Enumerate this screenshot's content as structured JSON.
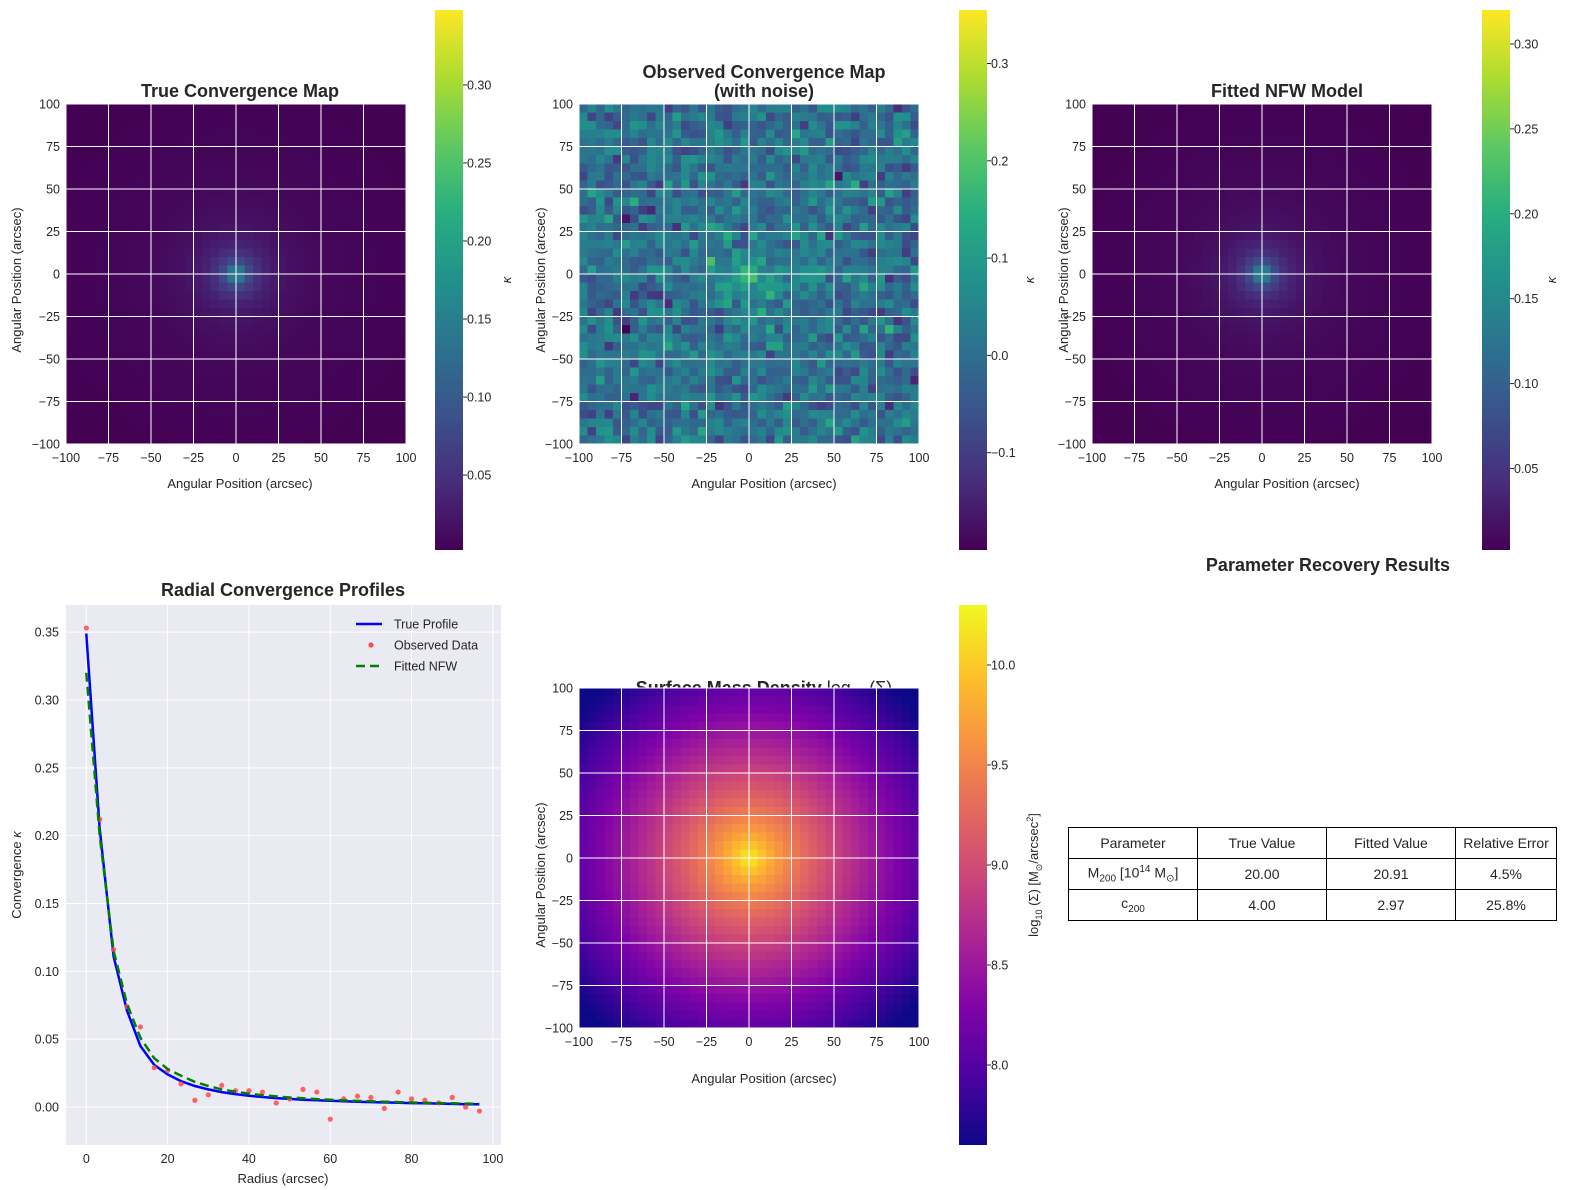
{
  "chart_data": [
    {
      "type": "heatmap",
      "title": "True Convergence Map",
      "xlabel": "Angular Position (arcsec)",
      "ylabel": "Angular Position (arcsec)",
      "xlim": [
        -100,
        100
      ],
      "ylim": [
        -100,
        100
      ],
      "xticks": [
        "−100",
        "−75",
        "−50",
        "−25",
        "0",
        "25",
        "50",
        "75",
        "100"
      ],
      "yticks": [
        "100",
        "75",
        "50",
        "25",
        "0",
        "−25",
        "−50",
        "−75",
        "−100"
      ],
      "grid": true,
      "colormap": "viridis",
      "colorbar": {
        "label": "κ",
        "range": [
          0.002,
          0.348
        ],
        "ticks": [
          {
            "v": 0.05,
            "t": "0.05"
          },
          {
            "v": 0.1,
            "t": "0.10"
          },
          {
            "v": 0.15,
            "t": "0.15"
          },
          {
            "v": 0.2,
            "t": "0.20"
          },
          {
            "v": 0.25,
            "t": "0.25"
          },
          {
            "v": 0.3,
            "t": "0.30"
          }
        ]
      },
      "grid_size": [
        40,
        40
      ],
      "peak": {
        "x": 0,
        "y": 0,
        "value": 0.348
      }
    },
    {
      "type": "heatmap",
      "title": "Observed Convergence Map\n(with noise)",
      "title_lines": [
        "Observed Convergence Map",
        "(with noise)"
      ],
      "xlabel": "Angular Position (arcsec)",
      "ylabel": "Angular Position (arcsec)",
      "xlim": [
        -100,
        100
      ],
      "ylim": [
        -100,
        100
      ],
      "xticks": [
        "−100",
        "−75",
        "−50",
        "−25",
        "0",
        "25",
        "50",
        "75",
        "100"
      ],
      "yticks": [
        "100",
        "75",
        "50",
        "25",
        "0",
        "−25",
        "−50",
        "−75",
        "−100"
      ],
      "grid": true,
      "colormap": "viridis",
      "noise_sigma": 0.05,
      "colorbar": {
        "label": "κ",
        "range": [
          -0.2,
          0.355
        ],
        "ticks": [
          {
            "v": -0.1,
            "t": "−0.1"
          },
          {
            "v": 0.0,
            "t": "0.0"
          },
          {
            "v": 0.1,
            "t": "0.1"
          },
          {
            "v": 0.2,
            "t": "0.2"
          },
          {
            "v": 0.3,
            "t": "0.3"
          }
        ]
      },
      "grid_size": [
        40,
        40
      ],
      "peak": {
        "x": 0,
        "y": 0,
        "value": 0.355
      }
    },
    {
      "type": "heatmap",
      "title": "Fitted NFW Model",
      "xlabel": "Angular Position (arcsec)",
      "ylabel": "Angular Position (arcsec)",
      "xlim": [
        -100,
        100
      ],
      "ylim": [
        -100,
        100
      ],
      "xticks": [
        "−100",
        "−75",
        "−50",
        "−25",
        "0",
        "25",
        "50",
        "75",
        "100"
      ],
      "yticks": [
        "100",
        "75",
        "50",
        "25",
        "0",
        "−25",
        "−50",
        "−75",
        "−100"
      ],
      "grid": true,
      "colormap": "viridis",
      "colorbar": {
        "label": "κ",
        "range": [
          0.002,
          0.32
        ],
        "ticks": [
          {
            "v": 0.05,
            "t": "0.05"
          },
          {
            "v": 0.1,
            "t": "0.10"
          },
          {
            "v": 0.15,
            "t": "0.15"
          },
          {
            "v": 0.2,
            "t": "0.20"
          },
          {
            "v": 0.25,
            "t": "0.25"
          },
          {
            "v": 0.3,
            "t": "0.30"
          }
        ]
      },
      "grid_size": [
        40,
        40
      ],
      "peak": {
        "x": 0,
        "y": 0,
        "value": 0.32
      }
    },
    {
      "type": "line",
      "title": "Radial Convergence Profiles",
      "xlabel": "Radius (arcsec)",
      "ylabel": "Convergence κ",
      "xlim": [
        -5,
        102
      ],
      "ylim": [
        -0.028,
        0.37
      ],
      "xticks": [
        0,
        20,
        40,
        60,
        80,
        100
      ],
      "yticks": [
        0.0,
        0.05,
        0.1,
        0.15,
        0.2,
        0.25,
        0.3,
        0.35
      ],
      "ytick_labels": [
        "0.00",
        "0.05",
        "0.10",
        "0.15",
        "0.20",
        "0.25",
        "0.30",
        "0.35"
      ],
      "grid": true,
      "legend_position": "top-right",
      "series": [
        {
          "name": "True Profile",
          "style": "solid",
          "color": "#0000ff",
          "x": [
            0,
            3.3,
            6.7,
            10,
            13.3,
            16.7,
            20,
            23.3,
            26.7,
            30,
            33.3,
            36.7,
            40,
            43.3,
            46.7,
            50,
            53.3,
            56.7,
            60,
            63.3,
            66.7,
            70,
            73.3,
            76.7,
            80,
            83.3,
            86.7,
            90,
            93.3,
            96.7
          ],
          "y": [
            0.349,
            0.205,
            0.111,
            0.071,
            0.045,
            0.031,
            0.024,
            0.019,
            0.0155,
            0.013,
            0.011,
            0.0095,
            0.0083,
            0.0074,
            0.0066,
            0.006,
            0.0054,
            0.005,
            0.0046,
            0.0042,
            0.0039,
            0.0036,
            0.0034,
            0.0031,
            0.0029,
            0.0027,
            0.0025,
            0.0023,
            0.0021,
            0.002
          ]
        },
        {
          "name": "Observed Data",
          "style": "points",
          "color": "#ff4a4a",
          "x": [
            0,
            3.3,
            6.7,
            10,
            13.3,
            16.7,
            20,
            23.3,
            26.7,
            30,
            33.3,
            36.7,
            40,
            43.3,
            46.7,
            50,
            53.3,
            56.7,
            60,
            63.3,
            66.7,
            70,
            73.3,
            76.7,
            80,
            83.3,
            86.7,
            90,
            93.3,
            96.7
          ],
          "y": [
            0.353,
            0.212,
            0.116,
            0.074,
            0.059,
            0.029,
            0.027,
            0.017,
            0.005,
            0.009,
            0.016,
            0.012,
            0.012,
            0.011,
            0.003,
            0.006,
            0.013,
            0.011,
            -0.009,
            0.006,
            0.008,
            0.007,
            -0.001,
            0.011,
            0.006,
            0.005,
            0.003,
            0.007,
            0.0,
            -0.003
          ]
        },
        {
          "name": "Fitted NFW",
          "style": "dashed",
          "color": "#008000",
          "x": [
            0,
            3.3,
            6.7,
            10,
            13.3,
            16.7,
            20,
            23.3,
            26.7,
            30,
            33.3,
            36.7,
            40,
            43.3,
            46.7,
            50,
            53.3,
            56.7,
            60,
            63.3,
            66.7,
            70,
            73.3,
            76.7,
            80,
            83.3,
            86.7,
            90,
            93.3,
            96.7
          ],
          "y": [
            0.32,
            0.2,
            0.115,
            0.076,
            0.051,
            0.036,
            0.028,
            0.023,
            0.0185,
            0.0155,
            0.013,
            0.0113,
            0.0098,
            0.0087,
            0.0078,
            0.007,
            0.0064,
            0.0058,
            0.0053,
            0.0049,
            0.0045,
            0.0042,
            0.0039,
            0.0036,
            0.0033,
            0.0031,
            0.0029,
            0.0027,
            0.0025,
            0.0023
          ]
        }
      ]
    },
    {
      "type": "heatmap",
      "title": "Surface Mass Density ",
      "title_math": "log",
      "title_math_sub": "10",
      "title_math_rest": " (Σ)",
      "xlabel": "Angular Position (arcsec)",
      "ylabel": "Angular Position (arcsec)",
      "xlim": [
        -100,
        100
      ],
      "ylim": [
        -100,
        100
      ],
      "xticks": [
        "−100",
        "−75",
        "−50",
        "−25",
        "0",
        "25",
        "50",
        "75",
        "100"
      ],
      "yticks": [
        "100",
        "75",
        "50",
        "25",
        "0",
        "−25",
        "−50",
        "−75",
        "−100"
      ],
      "grid": true,
      "colormap": "plasma",
      "colorbar": {
        "label": "log10 (Σ) [M⊙/arcsec2]",
        "label_parts": {
          "a": "log",
          "b": "10",
          "c": " (Σ) [M",
          "d": "⊙",
          "e": "/arcsec",
          "f": "2",
          "g": "]"
        },
        "range": [
          7.6,
          10.3
        ],
        "ticks": [
          {
            "v": 8.0,
            "t": "8.0"
          },
          {
            "v": 8.5,
            "t": "8.5"
          },
          {
            "v": 9.0,
            "t": "9.0"
          },
          {
            "v": 9.5,
            "t": "9.5"
          },
          {
            "v": 10.0,
            "t": "10.0"
          }
        ]
      },
      "grid_size": [
        40,
        40
      ],
      "peak": {
        "x": 0,
        "y": 0,
        "value": 10.3
      }
    },
    {
      "type": "table",
      "title": "Parameter Recovery Results",
      "columns": [
        "Parameter",
        "True Value",
        "Fitted Value",
        "Relative Error"
      ],
      "rows": [
        {
          "param": {
            "a": "M",
            "b": "200",
            "c": " [10",
            "d": "14",
            "e": " M",
            "f": "⊙",
            "g": "]"
          },
          "true": "20.00",
          "fitted": "20.91",
          "error": "4.5%"
        },
        {
          "param": {
            "a": "c",
            "b": "200"
          },
          "true": "4.00",
          "fitted": "2.97",
          "error": "25.8%"
        }
      ]
    }
  ]
}
